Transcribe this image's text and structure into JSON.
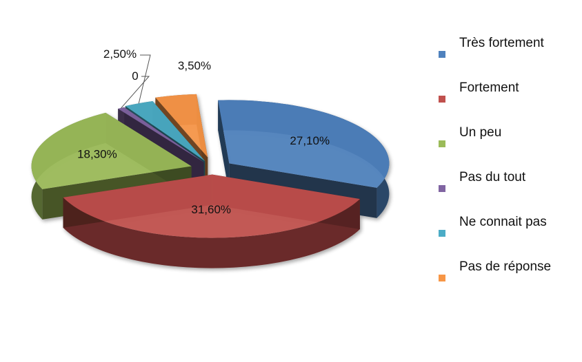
{
  "chart_data": {
    "type": "pie",
    "title": "",
    "categories": [
      "Très fortement",
      "Fortement",
      "Un peu",
      "Pas du tout",
      "Ne connait pas",
      "Pas de réponse"
    ],
    "values": [
      27.1,
      31.6,
      18.3,
      0,
      2.5,
      3.5
    ],
    "data_labels": [
      "27,10%",
      "31,60%",
      "18,30%",
      "0",
      "2,50%",
      "3,50%"
    ],
    "colors": [
      "#4f81bd",
      "#c0504d",
      "#9bbb59",
      "#8064a2",
      "#4bacc6",
      "#f79646"
    ],
    "style": "3d-exploded",
    "legend_position": "right"
  },
  "legend": {
    "items": [
      {
        "label": "Très fortement",
        "color": "#4f81bd"
      },
      {
        "label": "Fortement",
        "color": "#c0504d"
      },
      {
        "label": "Un peu",
        "color": "#9bbb59"
      },
      {
        "label": "Pas du tout",
        "color": "#8064a2"
      },
      {
        "label": "Ne connait pas",
        "color": "#4bacc6"
      },
      {
        "label": "Pas de réponse",
        "color": "#f79646"
      }
    ]
  }
}
